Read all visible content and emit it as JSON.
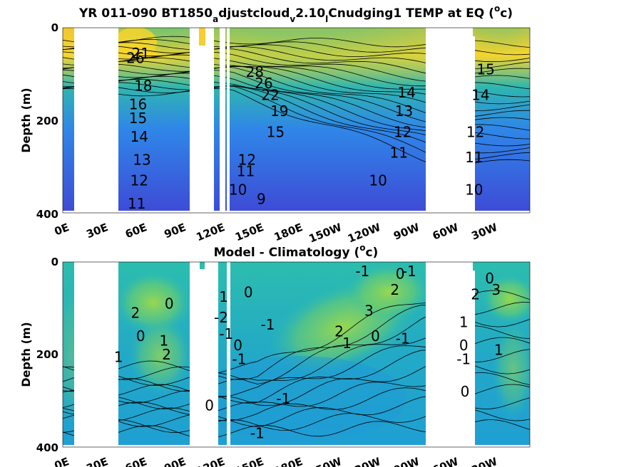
{
  "chart_data": [
    {
      "type": "heatmap",
      "title": "YR 011-090 BT1850_adjustcloud_v2.10_LCnudging1 TEMP at EQ (°c)",
      "title_parts": [
        "YR 011-090 BT1850",
        "a",
        "djustcloud",
        "v",
        "2.10",
        "l",
        "Cnudging1 TEMP at EQ (",
        "o",
        "c)"
      ],
      "ylabel": "Depth (m)",
      "xlabel": "",
      "xticks": [
        "0E",
        "30E",
        "60E",
        "90E",
        "120E",
        "150E",
        "180E",
        "150W",
        "120W",
        "90W",
        "60W",
        "30W"
      ],
      "yticks": [
        "0",
        "200",
        "400"
      ],
      "xlim": [
        0,
        360
      ],
      "ylim": [
        400,
        0
      ],
      "colors": {
        "warm": "#f5d52e",
        "mid": "#2fb6b0",
        "cold": "#3f4fe8"
      },
      "contour_labels": [
        {
          "text": "21",
          "lon": 60,
          "depth": 55
        },
        {
          "text": "26",
          "lon": 56,
          "depth": 65
        },
        {
          "text": "18",
          "lon": 62,
          "depth": 125
        },
        {
          "text": "16",
          "lon": 58,
          "depth": 165
        },
        {
          "text": "15",
          "lon": 58,
          "depth": 195
        },
        {
          "text": "14",
          "lon": 59,
          "depth": 235
        },
        {
          "text": "13",
          "lon": 61,
          "depth": 285
        },
        {
          "text": "12",
          "lon": 59,
          "depth": 330
        },
        {
          "text": "11",
          "lon": 57,
          "depth": 380
        },
        {
          "text": "28",
          "lon": 148,
          "depth": 95
        },
        {
          "text": "26",
          "lon": 155,
          "depth": 120
        },
        {
          "text": "22",
          "lon": 160,
          "depth": 145
        },
        {
          "text": "19",
          "lon": 167,
          "depth": 180
        },
        {
          "text": "15",
          "lon": 164,
          "depth": 225
        },
        {
          "text": "12",
          "lon": 142,
          "depth": 285
        },
        {
          "text": "11",
          "lon": 141,
          "depth": 310
        },
        {
          "text": "10",
          "lon": 135,
          "depth": 350
        },
        {
          "text": "9",
          "lon": 153,
          "depth": 370
        },
        {
          "text": "14",
          "lon": 265,
          "depth": 140
        },
        {
          "text": "13",
          "lon": 263,
          "depth": 180
        },
        {
          "text": "12",
          "lon": 262,
          "depth": 225
        },
        {
          "text": "11",
          "lon": 259,
          "depth": 270
        },
        {
          "text": "10",
          "lon": 243,
          "depth": 330
        },
        {
          "text": "15",
          "lon": 326,
          "depth": 90
        },
        {
          "text": "14",
          "lon": 322,
          "depth": 145
        },
        {
          "text": "12",
          "lon": 318,
          "depth": 225
        },
        {
          "text": "11",
          "lon": 317,
          "depth": 280
        },
        {
          "text": "10",
          "lon": 317,
          "depth": 350
        }
      ]
    },
    {
      "type": "heatmap",
      "title": "Model - Climatology (°c)",
      "title_parts": [
        "Model - Climatology (",
        "o",
        "c)"
      ],
      "ylabel": "Depth (m)",
      "xlabel": "",
      "xticks": [
        "0E",
        "30E",
        "60E",
        "90E",
        "120E",
        "150E",
        "180E",
        "150W",
        "120W",
        "90W",
        "60W",
        "30W"
      ],
      "yticks": [
        "0",
        "200",
        "400"
      ],
      "xlim": [
        0,
        360
      ],
      "ylim": [
        400,
        0
      ],
      "colors": {
        "pos": "#9fd94a",
        "zero": "#26b8b2",
        "neg": "#2a93d9"
      },
      "contour_labels": [
        {
          "text": "2",
          "lon": 56,
          "depth": 110
        },
        {
          "text": "0",
          "lon": 60,
          "depth": 160
        },
        {
          "text": "1",
          "lon": 43,
          "depth": 205
        },
        {
          "text": "1",
          "lon": 78,
          "depth": 170
        },
        {
          "text": "2",
          "lon": 80,
          "depth": 200
        },
        {
          "text": "0",
          "lon": 82,
          "depth": 90
        },
        {
          "text": "1",
          "lon": 124,
          "depth": 75
        },
        {
          "text": "-2",
          "lon": 122,
          "depth": 120
        },
        {
          "text": "-1",
          "lon": 126,
          "depth": 155
        },
        {
          "text": "0",
          "lon": 135,
          "depth": 180
        },
        {
          "text": "-1",
          "lon": 136,
          "depth": 210
        },
        {
          "text": "0",
          "lon": 113,
          "depth": 310
        },
        {
          "text": "0",
          "lon": 143,
          "depth": 65
        },
        {
          "text": "-1",
          "lon": 158,
          "depth": 135
        },
        {
          "text": "-1",
          "lon": 170,
          "depth": 295
        },
        {
          "text": "-1",
          "lon": 150,
          "depth": 370
        },
        {
          "text": "-1",
          "lon": 231,
          "depth": 20
        },
        {
          "text": "0",
          "lon": 260,
          "depth": 25
        },
        {
          "text": "2",
          "lon": 256,
          "depth": 60
        },
        {
          "text": "3",
          "lon": 236,
          "depth": 105
        },
        {
          "text": "2",
          "lon": 213,
          "depth": 150
        },
        {
          "text": "1",
          "lon": 219,
          "depth": 175
        },
        {
          "text": "0",
          "lon": 241,
          "depth": 160
        },
        {
          "text": "-1",
          "lon": 262,
          "depth": 165
        },
        {
          "text": "-1",
          "lon": 267,
          "depth": 20
        },
        {
          "text": "0",
          "lon": 329,
          "depth": 35
        },
        {
          "text": "3",
          "lon": 334,
          "depth": 60
        },
        {
          "text": "2",
          "lon": 318,
          "depth": 70
        },
        {
          "text": "1",
          "lon": 309,
          "depth": 130
        },
        {
          "text": "0",
          "lon": 309,
          "depth": 180
        },
        {
          "text": "-1",
          "lon": 309,
          "depth": 210
        },
        {
          "text": "0",
          "lon": 310,
          "depth": 280
        },
        {
          "text": "1",
          "lon": 336,
          "depth": 190
        }
      ]
    }
  ]
}
